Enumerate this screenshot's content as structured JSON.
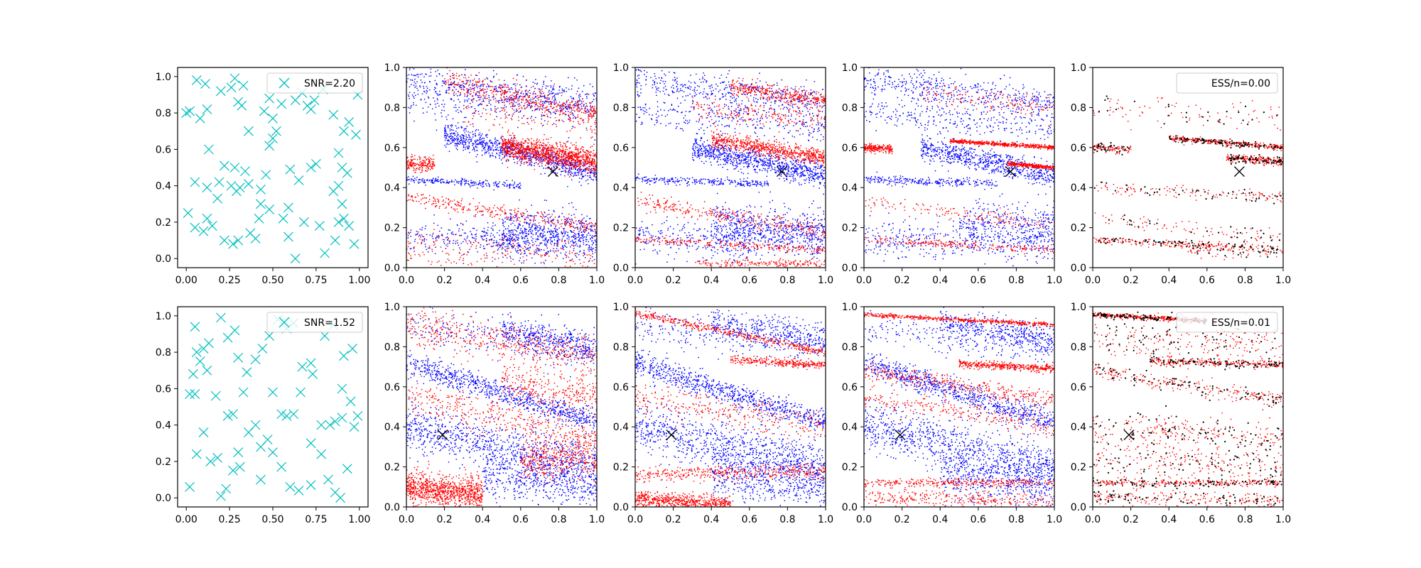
{
  "colors": {
    "measurement": "#00bfbf",
    "particle_a": "#0000ff",
    "particle_b": "#ff0000",
    "resampled": "#000000",
    "truth": "#000000"
  },
  "rows": [
    {
      "legend_snr": "SNR=2.20",
      "legend_ess": "ESS/n=0.00",
      "truth": [
        0.77,
        0.48
      ],
      "measurements": [
        [
          0.06,
          0.98
        ],
        [
          0.0,
          0.8
        ],
        [
          0.02,
          0.81
        ],
        [
          0.08,
          0.77
        ],
        [
          0.12,
          0.82
        ],
        [
          0.13,
          0.6
        ],
        [
          0.11,
          0.96
        ],
        [
          0.2,
          0.92
        ],
        [
          0.26,
          0.94
        ],
        [
          0.28,
          0.99
        ],
        [
          0.3,
          0.86
        ],
        [
          0.33,
          0.95
        ],
        [
          0.32,
          0.84
        ],
        [
          0.36,
          0.7
        ],
        [
          0.22,
          0.51
        ],
        [
          0.19,
          0.42
        ],
        [
          0.05,
          0.42
        ],
        [
          0.12,
          0.39
        ],
        [
          0.18,
          0.33
        ],
        [
          0.26,
          0.4
        ],
        [
          0.29,
          0.37
        ],
        [
          0.31,
          0.39
        ],
        [
          0.34,
          0.48
        ],
        [
          0.28,
          0.5
        ],
        [
          0.43,
          0.38
        ],
        [
          0.43,
          0.3
        ],
        [
          0.46,
          0.46
        ],
        [
          0.48,
          0.62
        ],
        [
          0.5,
          0.66
        ],
        [
          0.52,
          0.7
        ],
        [
          0.5,
          0.77
        ],
        [
          0.45,
          0.81
        ],
        [
          0.48,
          0.88
        ],
        [
          0.55,
          0.85
        ],
        [
          0.63,
          0.87
        ],
        [
          0.7,
          0.84
        ],
        [
          0.72,
          0.82
        ],
        [
          0.74,
          0.87
        ],
        [
          0.67,
          0.91
        ],
        [
          0.79,
          0.93
        ],
        [
          0.85,
          0.79
        ],
        [
          0.91,
          0.7
        ],
        [
          0.98,
          0.68
        ],
        [
          0.94,
          0.75
        ],
        [
          0.99,
          0.9
        ],
        [
          0.88,
          0.58
        ],
        [
          0.9,
          0.5
        ],
        [
          0.93,
          0.47
        ],
        [
          0.88,
          0.4
        ],
        [
          0.85,
          0.37
        ],
        [
          0.9,
          0.3
        ],
        [
          0.88,
          0.2
        ],
        [
          0.91,
          0.22
        ],
        [
          0.94,
          0.18
        ],
        [
          0.97,
          0.08
        ],
        [
          0.86,
          0.1
        ],
        [
          0.8,
          0.03
        ],
        [
          0.77,
          0.18
        ],
        [
          0.68,
          0.2
        ],
        [
          0.72,
          0.5
        ],
        [
          0.75,
          0.52
        ],
        [
          0.6,
          0.49
        ],
        [
          0.65,
          0.43
        ],
        [
          0.59,
          0.28
        ],
        [
          0.56,
          0.22
        ],
        [
          0.59,
          0.12
        ],
        [
          0.63,
          0.0
        ],
        [
          0.48,
          0.27
        ],
        [
          0.42,
          0.22
        ],
        [
          0.37,
          0.14
        ],
        [
          0.3,
          0.1
        ],
        [
          0.27,
          0.08
        ],
        [
          0.22,
          0.1
        ],
        [
          0.15,
          0.18
        ],
        [
          0.12,
          0.22
        ],
        [
          0.1,
          0.15
        ],
        [
          0.05,
          0.17
        ],
        [
          0.01,
          0.25
        ],
        [
          0.4,
          0.11
        ],
        [
          0.36,
          0.41
        ]
      ]
    },
    {
      "legend_snr": "SNR=1.52",
      "legend_ess": "ESS/n=0.01",
      "truth": [
        0.19,
        0.36
      ],
      "measurements": [
        [
          0.05,
          0.94
        ],
        [
          0.06,
          0.8
        ],
        [
          0.08,
          0.75
        ],
        [
          0.1,
          0.82
        ],
        [
          0.13,
          0.85
        ],
        [
          0.12,
          0.7
        ],
        [
          0.04,
          0.68
        ],
        [
          0.02,
          0.57
        ],
        [
          0.05,
          0.57
        ],
        [
          0.17,
          0.56
        ],
        [
          0.2,
          0.99
        ],
        [
          0.24,
          0.88
        ],
        [
          0.28,
          0.92
        ],
        [
          0.3,
          0.77
        ],
        [
          0.33,
          0.58
        ],
        [
          0.35,
          0.69
        ],
        [
          0.4,
          0.76
        ],
        [
          0.44,
          0.82
        ],
        [
          0.48,
          0.89
        ],
        [
          0.53,
          0.98
        ],
        [
          0.58,
          0.93
        ],
        [
          0.62,
          0.96
        ],
        [
          0.67,
          0.72
        ],
        [
          0.72,
          0.74
        ],
        [
          0.73,
          0.68
        ],
        [
          0.8,
          0.89
        ],
        [
          0.85,
          0.95
        ],
        [
          0.91,
          0.78
        ],
        [
          0.96,
          0.82
        ],
        [
          0.9,
          0.6
        ],
        [
          0.95,
          0.53
        ],
        [
          0.86,
          0.42
        ],
        [
          0.9,
          0.44
        ],
        [
          0.83,
          0.4
        ],
        [
          0.78,
          0.4
        ],
        [
          0.72,
          0.3
        ],
        [
          0.78,
          0.24
        ],
        [
          0.82,
          0.1
        ],
        [
          0.86,
          0.03
        ],
        [
          0.89,
          0.0
        ],
        [
          0.93,
          0.16
        ],
        [
          0.72,
          0.07
        ],
        [
          0.65,
          0.04
        ],
        [
          0.6,
          0.06
        ],
        [
          0.55,
          0.17
        ],
        [
          0.5,
          0.25
        ],
        [
          0.47,
          0.32
        ],
        [
          0.43,
          0.28
        ],
        [
          0.4,
          0.4
        ],
        [
          0.36,
          0.36
        ],
        [
          0.3,
          0.25
        ],
        [
          0.27,
          0.15
        ],
        [
          0.23,
          0.05
        ],
        [
          0.2,
          0.01
        ],
        [
          0.18,
          0.22
        ],
        [
          0.14,
          0.2
        ],
        [
          0.1,
          0.36
        ],
        [
          0.06,
          0.24
        ],
        [
          0.02,
          0.06
        ],
        [
          0.24,
          0.45
        ],
        [
          0.27,
          0.46
        ],
        [
          0.55,
          0.46
        ],
        [
          0.58,
          0.45
        ],
        [
          0.62,
          0.46
        ],
        [
          0.66,
          0.58
        ],
        [
          0.5,
          0.58
        ],
        [
          0.31,
          0.17
        ],
        [
          0.43,
          0.1
        ],
        [
          0.99,
          0.45
        ],
        [
          0.97,
          0.39
        ]
      ]
    }
  ],
  "axes": {
    "col0_ticks_x": [
      "0.00",
      "0.25",
      "0.50",
      "0.75",
      "1.00"
    ],
    "col0_ticks_y": [
      "0.0",
      "0.2",
      "0.4",
      "0.6",
      "0.8",
      "1.0"
    ],
    "colN_ticks_x": [
      "0.0",
      "0.2",
      "0.4",
      "0.6",
      "0.8",
      "1.0"
    ],
    "colN_ticks_y": [
      "0.0",
      "0.2",
      "0.4",
      "0.6",
      "0.8",
      "1.0"
    ]
  },
  "chart_data": {
    "type": "scatter",
    "title": "",
    "xlabel": "",
    "ylabel": "",
    "layout": "2 rows x 5 columns",
    "xlim_measurement_panels": [
      -0.05,
      1.05
    ],
    "ylim_measurement_panels": [
      -0.05,
      1.05
    ],
    "xlim_particle_panels": [
      0,
      1
    ],
    "ylim_particle_panels": [
      0,
      1
    ],
    "grid": false,
    "legend_placement": "upper right",
    "rows": [
      {
        "panels": [
          {
            "kind": "measurements",
            "marker": "x",
            "legend": "SNR=2.20"
          },
          {
            "kind": "particles"
          },
          {
            "kind": "particles"
          },
          {
            "kind": "particles"
          },
          {
            "kind": "weighted-particles",
            "legend": "ESS/n=0.00"
          }
        ],
        "truth": [
          0.77,
          0.48
        ]
      },
      {
        "panels": [
          {
            "kind": "measurements",
            "marker": "x",
            "legend": "SNR=1.52"
          },
          {
            "kind": "particles"
          },
          {
            "kind": "particles"
          },
          {
            "kind": "particles"
          },
          {
            "kind": "weighted-particles",
            "legend": "ESS/n=0.01"
          }
        ],
        "truth": [
          0.19,
          0.36
        ]
      }
    ]
  }
}
